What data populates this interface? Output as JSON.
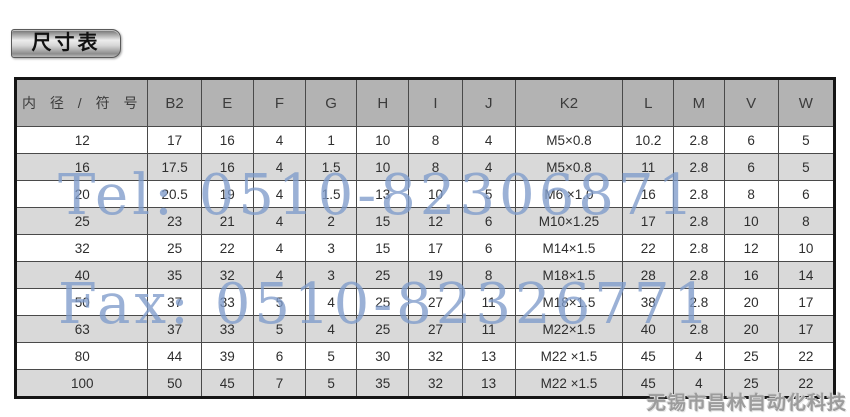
{
  "page": {
    "title": "尺寸表",
    "watermarks": {
      "tel": "Tel: 0510-82306871",
      "fax": "Fax: 0510-82326771",
      "company": "无锡市昌林自动化科技"
    },
    "colors": {
      "header_bg": "#b3b3b3",
      "row_alt_bg": "#d9d9d9",
      "row_bg": "#ffffff",
      "table_border": "#151515",
      "watermark_blue": "#7f9ccb",
      "company_gray": "#9c9c9c"
    }
  },
  "table": {
    "headers": [
      "内 径 / 符 号",
      "B2",
      "E",
      "F",
      "G",
      "H",
      "I",
      "J",
      "K2",
      "L",
      "M",
      "V",
      "W"
    ],
    "rows": [
      [
        "12",
        "17",
        "16",
        "4",
        "1",
        "10",
        "8",
        "4",
        "M5×0.8",
        "10.2",
        "2.8",
        "6",
        "5"
      ],
      [
        "16",
        "17.5",
        "16",
        "4",
        "1.5",
        "10",
        "8",
        "4",
        "M5×0.8",
        "11",
        "2.8",
        "6",
        "5"
      ],
      [
        "20",
        "20.5",
        "19",
        "4",
        "1.5",
        "13",
        "10",
        "5",
        "M6 ×1.0",
        "16",
        "2.8",
        "8",
        "6"
      ],
      [
        "25",
        "23",
        "21",
        "4",
        "2",
        "15",
        "12",
        "6",
        "M10×1.25",
        "17",
        "2.8",
        "10",
        "8"
      ],
      [
        "32",
        "25",
        "22",
        "4",
        "3",
        "15",
        "17",
        "6",
        "M14×1.5",
        "22",
        "2.8",
        "12",
        "10"
      ],
      [
        "40",
        "35",
        "32",
        "4",
        "3",
        "25",
        "19",
        "8",
        "M18×1.5",
        "28",
        "2.8",
        "16",
        "14"
      ],
      [
        "50",
        "37",
        "33",
        "5",
        "4",
        "25",
        "27",
        "11",
        "M18×1.5",
        "38",
        "2.8",
        "20",
        "17"
      ],
      [
        "63",
        "37",
        "33",
        "5",
        "4",
        "25",
        "27",
        "11",
        "M22×1.5",
        "40",
        "2.8",
        "20",
        "17"
      ],
      [
        "80",
        "44",
        "39",
        "6",
        "5",
        "30",
        "32",
        "13",
        "M22 ×1.5",
        "45",
        "4",
        "25",
        "22"
      ],
      [
        "100",
        "50",
        "45",
        "7",
        "5",
        "35",
        "32",
        "13",
        "M22 ×1.5",
        "45",
        "4",
        "25",
        "22"
      ]
    ]
  }
}
